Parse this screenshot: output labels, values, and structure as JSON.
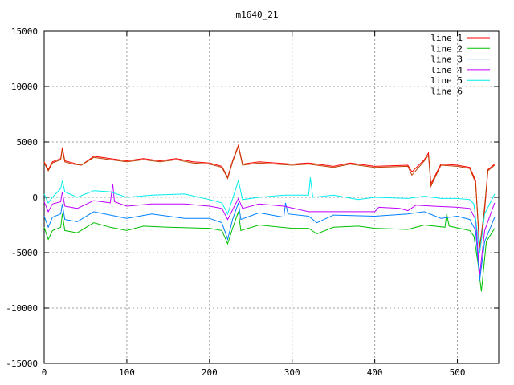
{
  "chart_data": {
    "type": "line",
    "title": "m1640_21",
    "xlabel": "",
    "ylabel": "",
    "xlim": [
      0,
      550
    ],
    "ylim": [
      -15000,
      15000
    ],
    "x_ticks": [
      "0",
      "100",
      "200",
      "300",
      "400",
      "500"
    ],
    "x_tick_values": [
      0,
      100,
      200,
      300,
      400,
      500
    ],
    "y_ticks": [
      "15000",
      "10000",
      "5000",
      "0",
      "-5000",
      "-10000",
      "-15000"
    ],
    "y_tick_values": [
      15000,
      10000,
      5000,
      0,
      -5000,
      -10000,
      -15000
    ],
    "grid": true,
    "legend_position": "top-right",
    "series": [
      {
        "name": "line 1",
        "color": "#ff0000",
        "x": [
          0,
          5,
          10,
          20,
          22,
          25,
          35,
          45,
          60,
          80,
          100,
          120,
          140,
          160,
          180,
          200,
          215,
          222,
          228,
          235,
          240,
          260,
          300,
          320,
          350,
          370,
          400,
          440,
          445,
          460,
          465,
          468,
          480,
          500,
          515,
          522,
          527,
          532,
          537,
          545
        ],
        "y": [
          3200,
          2500,
          3200,
          3500,
          4500,
          3300,
          3100,
          2900,
          3700,
          3500,
          3300,
          3500,
          3300,
          3500,
          3200,
          3100,
          2800,
          1800,
          3300,
          4700,
          3000,
          3200,
          3000,
          3100,
          2800,
          3100,
          2800,
          2900,
          2300,
          3400,
          4000,
          1200,
          3000,
          2900,
          2700,
          1500,
          -5000,
          -2000,
          2500,
          3000
        ]
      },
      {
        "name": "line 2",
        "color": "#00c000",
        "x": [
          0,
          5,
          10,
          20,
          22,
          25,
          40,
          60,
          80,
          100,
          120,
          150,
          200,
          215,
          222,
          228,
          235,
          238,
          260,
          300,
          320,
          330,
          350,
          380,
          400,
          440,
          460,
          485,
          487,
          490,
          515,
          520,
          525,
          529,
          535,
          545
        ],
        "y": [
          -2700,
          -3800,
          -3000,
          -2700,
          -1500,
          -3000,
          -3200,
          -2300,
          -2700,
          -3000,
          -2600,
          -2700,
          -2800,
          -3000,
          -4200,
          -2800,
          -1300,
          -3000,
          -2500,
          -2800,
          -2800,
          -3300,
          -2700,
          -2600,
          -2800,
          -2900,
          -2500,
          -2700,
          -1500,
          -2600,
          -3000,
          -3500,
          -6000,
          -8500,
          -4000,
          -2800
        ]
      },
      {
        "name": "line 3",
        "color": "#0080ff",
        "x": [
          0,
          5,
          10,
          20,
          22,
          25,
          40,
          60,
          80,
          100,
          130,
          170,
          200,
          215,
          222,
          228,
          235,
          238,
          260,
          290,
          292,
          295,
          320,
          330,
          350,
          400,
          440,
          460,
          480,
          500,
          515,
          522,
          527,
          533,
          545
        ],
        "y": [
          -1700,
          -2700,
          -1800,
          -1500,
          -600,
          -2000,
          -2200,
          -1300,
          -1600,
          -1900,
          -1500,
          -1900,
          -1900,
          -2300,
          -3800,
          -2000,
          -500,
          -2000,
          -1400,
          -1800,
          -500,
          -1500,
          -1700,
          -2300,
          -1600,
          -1700,
          -1500,
          -1300,
          -1900,
          -1700,
          -2000,
          -3000,
          -7500,
          -4000,
          -1800
        ]
      },
      {
        "name": "line 4",
        "color": "#c000ff",
        "x": [
          0,
          5,
          10,
          20,
          22,
          25,
          40,
          60,
          80,
          83,
          85,
          100,
          130,
          170,
          200,
          215,
          222,
          235,
          240,
          260,
          290,
          320,
          400,
          405,
          430,
          440,
          450,
          470,
          500,
          515,
          522,
          527,
          533,
          545
        ],
        "y": [
          -400,
          -1300,
          -600,
          -400,
          500,
          -800,
          -1000,
          -300,
          -500,
          1200,
          -400,
          -800,
          -600,
          -600,
          -800,
          -1000,
          -2000,
          -100,
          -1000,
          -600,
          -800,
          -1300,
          -1300,
          -900,
          -1000,
          -1200,
          -700,
          -800,
          -900,
          -1000,
          -2000,
          -7000,
          -3000,
          -500
        ]
      },
      {
        "name": "line 5",
        "color": "#00eeee",
        "x": [
          0,
          5,
          10,
          20,
          22,
          25,
          40,
          60,
          80,
          100,
          130,
          170,
          200,
          215,
          222,
          235,
          240,
          260,
          290,
          320,
          322,
          325,
          350,
          380,
          400,
          440,
          460,
          480,
          500,
          515,
          520,
          527,
          533,
          545
        ],
        "y": [
          300,
          -500,
          0,
          800,
          1500,
          500,
          0,
          600,
          500,
          0,
          200,
          300,
          -200,
          -500,
          -1500,
          1500,
          -200,
          0,
          200,
          200,
          1800,
          0,
          200,
          -200,
          0,
          -100,
          100,
          -100,
          -100,
          -200,
          -600,
          -5000,
          -1500,
          300
        ]
      },
      {
        "name": "line 6",
        "color": "#c04000",
        "x": [
          0,
          5,
          10,
          20,
          22,
          25,
          35,
          45,
          60,
          80,
          100,
          120,
          140,
          160,
          180,
          200,
          215,
          222,
          228,
          235,
          240,
          260,
          300,
          320,
          350,
          370,
          400,
          440,
          445,
          460,
          465,
          468,
          480,
          500,
          515,
          522,
          527,
          532,
          537,
          545
        ],
        "y": [
          3100,
          2400,
          3100,
          3400,
          4300,
          3200,
          3000,
          2900,
          3600,
          3400,
          3200,
          3400,
          3200,
          3400,
          3100,
          3000,
          2700,
          1700,
          3200,
          4600,
          2900,
          3100,
          2900,
          3000,
          2700,
          3000,
          2700,
          2800,
          2000,
          3300,
          3800,
          1000,
          2900,
          2800,
          2600,
          1300,
          -4500,
          -1500,
          2400,
          2900
        ]
      }
    ]
  }
}
